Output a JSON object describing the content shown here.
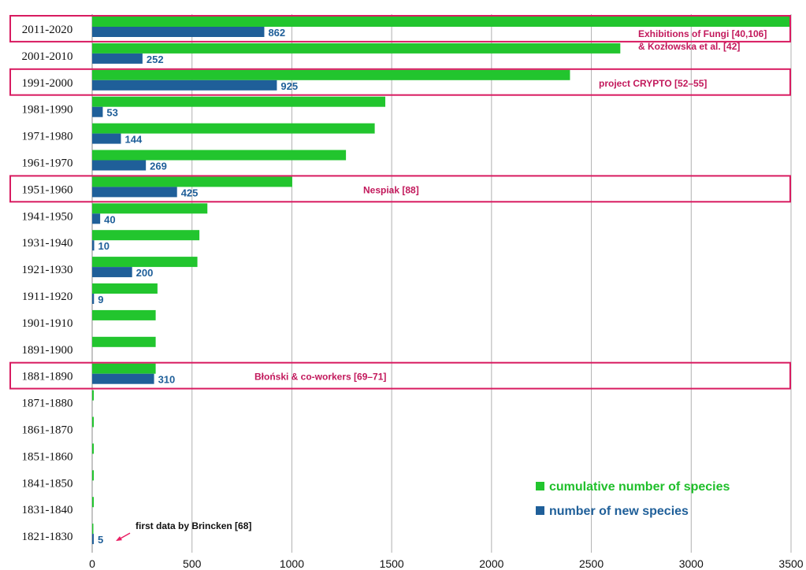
{
  "chart_data": {
    "type": "bar",
    "orientation": "horizontal",
    "categories": [
      "2011-2020",
      "2001-2010",
      "1991-2000",
      "1981-1990",
      "1971-1980",
      "1961-1970",
      "1951-1960",
      "1941-1950",
      "1931-1940",
      "1921-1930",
      "1911-1920",
      "1901-1910",
      "1891-1900",
      "1881-1890",
      "1871-1880",
      "1861-1870",
      "1851-1860",
      "1841-1850",
      "1831-1840",
      "1821-1830"
    ],
    "series": [
      {
        "name": "cumulative number of species",
        "color": "#22c52e",
        "values": [
          3500,
          2645,
          2393,
          1468,
          1415,
          1271,
          1002,
          577,
          537,
          527,
          327,
          318,
          318,
          318,
          8,
          8,
          8,
          8,
          8,
          5
        ]
      },
      {
        "name": "number of new species",
        "color": "#1f5f99",
        "values": [
          862,
          252,
          925,
          53,
          144,
          269,
          425,
          40,
          10,
          200,
          9,
          null,
          null,
          310,
          null,
          null,
          null,
          null,
          null,
          5
        ],
        "labels": [
          "862",
          "252",
          "925",
          "53",
          "144",
          "269",
          "425",
          "40",
          "10",
          "200",
          "9",
          "",
          "",
          "310",
          "",
          "",
          "",
          "",
          "",
          "5"
        ]
      }
    ],
    "xlim": [
      0,
      3500
    ],
    "xticks": [
      "0",
      "500",
      "1000",
      "1500",
      "2000",
      "2500",
      "3000",
      "3500"
    ],
    "xtick_values": [
      0,
      500,
      1000,
      1500,
      2000,
      2500,
      3000,
      3500
    ],
    "grid": true,
    "legend_position": "bottom-right",
    "highlights": [
      {
        "category": "2011-2020",
        "lines": [
          "Exhibitions of Fungi [40,106]",
          "& Kozłowska et al. [42]"
        ]
      },
      {
        "category": "1991-2000",
        "lines": [
          "project CRYPTO [52–55]"
        ]
      },
      {
        "category": "1951-1960",
        "lines": [
          "Nespiak [88]"
        ]
      },
      {
        "category": "1881-1890",
        "lines": [
          "Błoński & co-workers [69–71]"
        ]
      }
    ],
    "note": {
      "category": "1821-1830",
      "text": "first data by Brincken [68]"
    }
  },
  "colors": {
    "highlight_border": "#d81b60",
    "highlight_text": "#c2185b",
    "label_color": "#1f5f99",
    "grid_color": "#b0b0b0",
    "arrow_color": "#e91e63"
  }
}
